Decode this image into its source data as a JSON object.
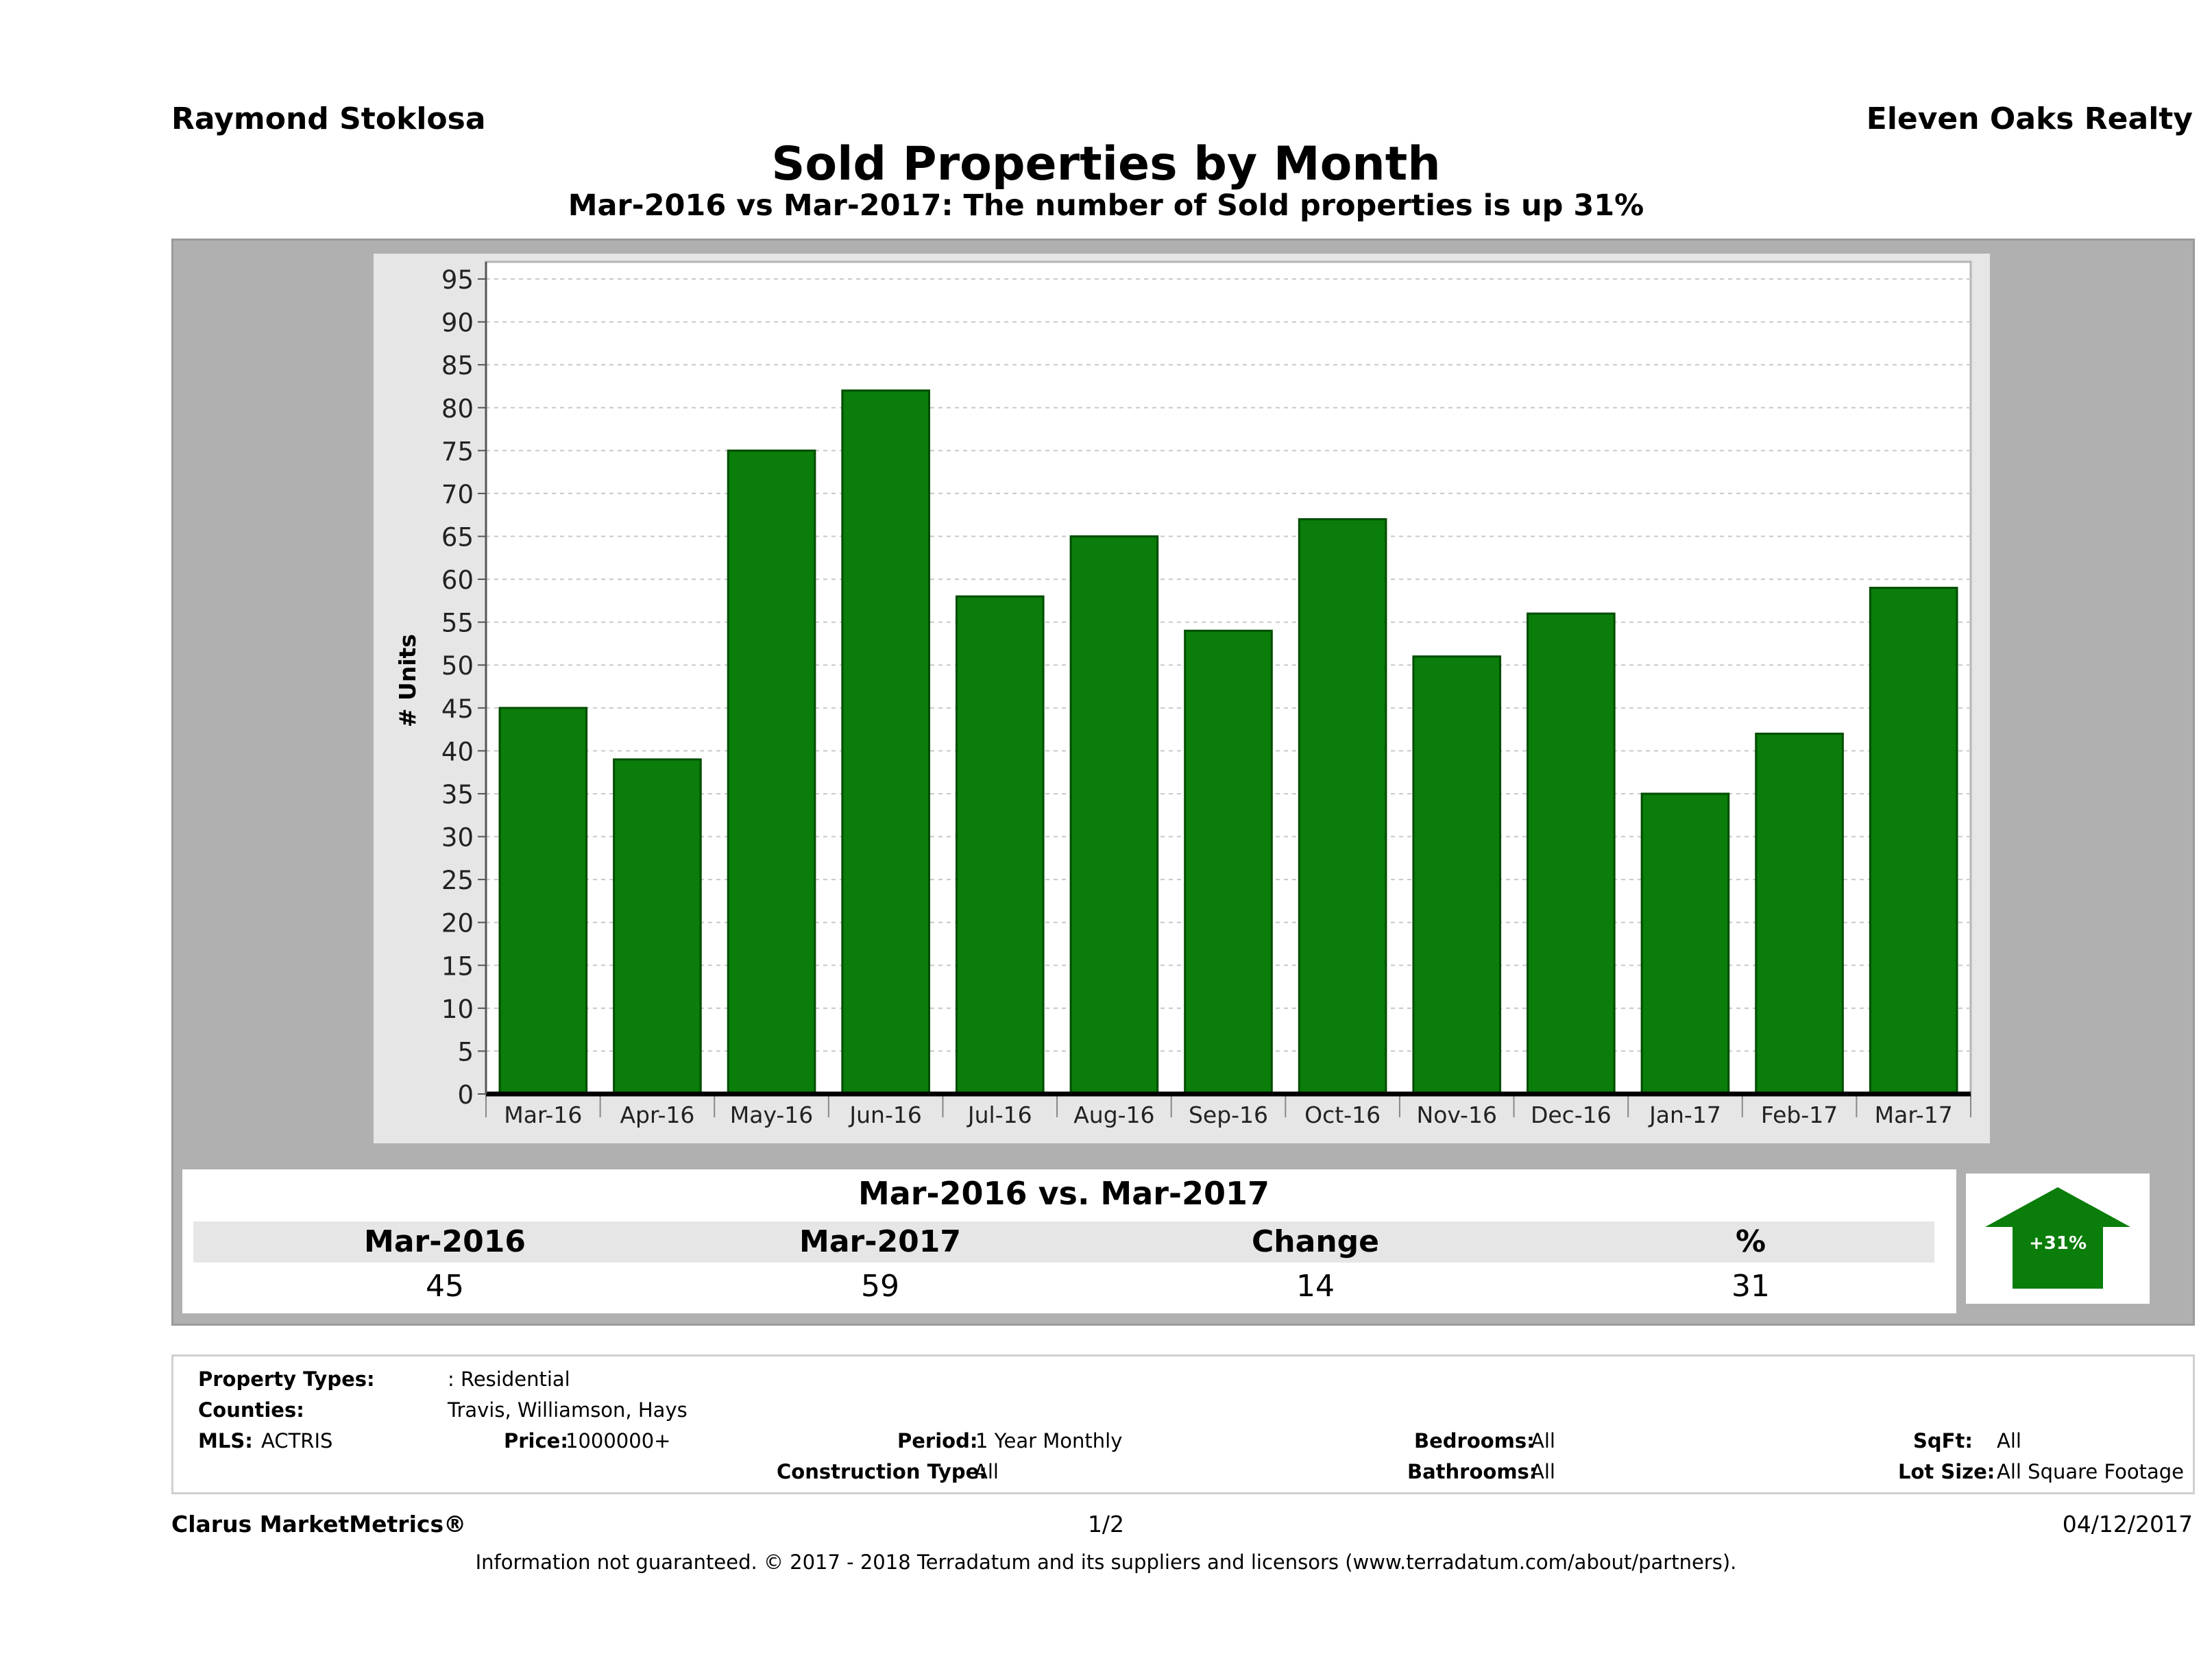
{
  "header": {
    "agent": "Raymond Stoklosa",
    "brokerage": "Eleven Oaks Realty",
    "title": "Sold Properties by Month",
    "subtitle": "Mar-2016 vs Mar-2017: The number of Sold  properties is up 31%"
  },
  "chart_data": {
    "type": "bar",
    "categories": [
      "Mar-16",
      "Apr-16",
      "May-16",
      "Jun-16",
      "Jul-16",
      "Aug-16",
      "Sep-16",
      "Oct-16",
      "Nov-16",
      "Dec-16",
      "Jan-17",
      "Feb-17",
      "Mar-17"
    ],
    "values": [
      45,
      39,
      75,
      82,
      58,
      65,
      54,
      67,
      51,
      56,
      35,
      42,
      59
    ],
    "ylabel": "# Units",
    "ylim": [
      0,
      97
    ],
    "yticks": [
      0,
      5,
      10,
      15,
      20,
      25,
      30,
      35,
      40,
      45,
      50,
      55,
      60,
      65,
      70,
      75,
      80,
      85,
      90,
      95
    ],
    "grid": true,
    "bar_color": "#0a7d0a"
  },
  "summary": {
    "title": "Mar-2016 vs. Mar-2017",
    "headers": [
      "Mar-2016",
      "Mar-2017",
      "Change",
      "%"
    ],
    "values": [
      "45",
      "59",
      "14",
      "31"
    ],
    "badge": "+31%",
    "badge_color": "#0a7d0a"
  },
  "info": {
    "property_types_label": "Property Types:",
    "property_types_value": ": Residential",
    "counties_label": "Counties:",
    "counties_value": "Travis, Williamson, Hays",
    "mls_label": "MLS:",
    "mls_value": "ACTRIS",
    "price_label": "Price:",
    "price_value": "1000000+",
    "period_label": "Period:",
    "period_value": "1 Year Monthly",
    "construction_label": "Construction Type:",
    "construction_value": "All",
    "bedrooms_label": "Bedrooms:",
    "bedrooms_value": "All",
    "bathrooms_label": "Bathrooms:",
    "bathrooms_value": "All",
    "sqft_label": "SqFt:",
    "sqft_value": "All",
    "lot_label": "Lot Size:",
    "lot_value": "All Square Footage"
  },
  "footer": {
    "brand": "Clarus MarketMetrics®",
    "page": "1/2",
    "date": "04/12/2017",
    "disclaimer": "Information not guaranteed. © 2017 - 2018 Terradatum and its suppliers and licensors (www.terradatum.com/about/partners)."
  }
}
